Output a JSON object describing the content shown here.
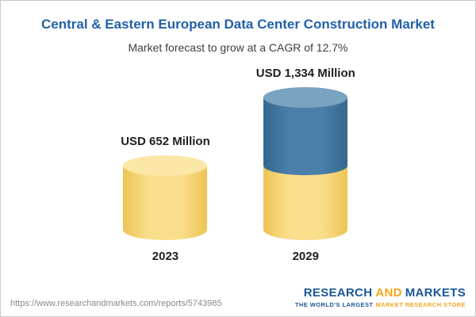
{
  "header": {
    "title": "Central & Eastern European Data Center Construction Market",
    "subtitle": "Market forecast to grow at a CAGR of 12.7%"
  },
  "chart_data": {
    "type": "bar",
    "variant": "stacked-cylinder",
    "title": "Central & Eastern European Data Center Construction Market",
    "subtitle": "Market forecast to grow at a CAGR of 12.7%",
    "cagr_percent": 12.7,
    "unit": "USD Million",
    "categories": [
      "2023",
      "2029"
    ],
    "values": [
      652,
      1334
    ],
    "value_labels": [
      "USD 652 Million",
      "USD 1,334 Million"
    ],
    "bars": [
      {
        "category": "2023",
        "total": 652,
        "segments": [
          {
            "name": "base",
            "color": "#F6D06B",
            "value": 652
          }
        ]
      },
      {
        "category": "2029",
        "total": 1334,
        "segments": [
          {
            "name": "base",
            "color": "#F6D06B",
            "value": 652
          },
          {
            "name": "growth",
            "color": "#4479A4",
            "value": 682
          }
        ]
      }
    ],
    "colors": {
      "yellow": "#F6D06B",
      "yellow_cap": "#FBE8A6",
      "blue": "#4479A4",
      "blue_cap": "#7AA3C2",
      "title_blue": "#2260A8"
    },
    "ylim": [
      0,
      1400
    ],
    "grid": false,
    "legend": false
  },
  "footer": {
    "url": "https://www.researchandmarkets.com/reports/5743985",
    "logo": {
      "part1": "RESEARCH",
      "part2": "AND",
      "part3": "MARKETS",
      "tagline_part1": "THE WORLD'S LARGEST",
      "tagline_part2": "MARKET RESEARCH STORE"
    }
  }
}
